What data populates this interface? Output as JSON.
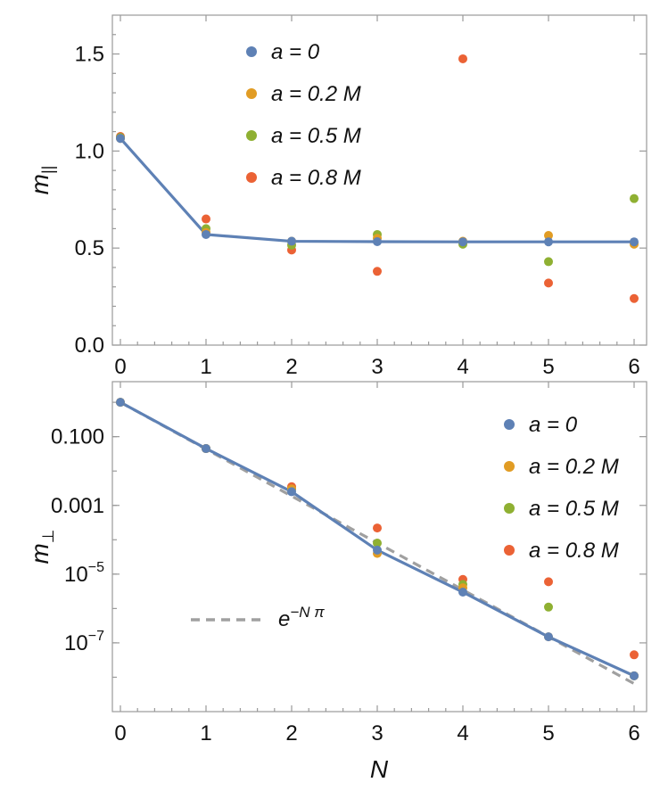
{
  "chart_data": [
    {
      "id": "top",
      "type": "scatter",
      "ylabel": "m",
      "ylabel_sub": "||",
      "xlim": [
        0,
        6
      ],
      "ylim": [
        0,
        1.7
      ],
      "yscale": "linear",
      "xticks": [
        "0",
        "1",
        "2",
        "3",
        "4",
        "5",
        "6"
      ],
      "yticks": [
        {
          "value": 0.0,
          "label": "0.0"
        },
        {
          "value": 0.5,
          "label": "0.5"
        },
        {
          "value": 1.0,
          "label": "1.0"
        },
        {
          "value": 1.5,
          "label": "1.5"
        }
      ],
      "legend_placement": "top-center",
      "series": [
        {
          "name": "a = 0",
          "color": "#5e81b5",
          "x": [
            0,
            1,
            2,
            3,
            4,
            5,
            6
          ],
          "y": [
            1.065,
            0.57,
            0.535,
            0.533,
            0.532,
            0.532,
            0.532
          ]
        },
        {
          "name": "a = 0.2 M",
          "color": "#e19c24",
          "x": [
            0,
            1,
            2,
            3,
            4,
            5,
            6
          ],
          "y": [
            1.065,
            0.58,
            0.535,
            0.55,
            0.535,
            0.565,
            0.52
          ]
        },
        {
          "name": "a = 0.5 M",
          "color": "#8fb032",
          "x": [
            0,
            1,
            2,
            3,
            4,
            5,
            6
          ],
          "y": [
            1.07,
            0.6,
            0.515,
            0.57,
            0.52,
            0.43,
            0.755
          ]
        },
        {
          "name": "a = 0.8 M",
          "color": "#eb6235",
          "x": [
            0,
            1,
            2,
            3,
            4,
            5,
            6
          ],
          "y": [
            1.075,
            0.65,
            0.49,
            0.38,
            1.475,
            0.32,
            0.24
          ]
        }
      ],
      "line": {
        "series": "a = 0",
        "color": "#5e81b5"
      }
    },
    {
      "id": "bottom",
      "type": "scatter",
      "xlabel": "N",
      "ylabel": "m",
      "ylabel_sub": "⊥",
      "xlim": [
        0,
        6
      ],
      "ylim_log10": [
        -9,
        0.6
      ],
      "yscale": "log",
      "xticks": [
        "0",
        "1",
        "2",
        "3",
        "4",
        "5",
        "6"
      ],
      "yticks": [
        {
          "value": 0.1,
          "label": "0.100"
        },
        {
          "value": 0.001,
          "label": "0.001"
        },
        {
          "value": 1e-05,
          "label": "10",
          "exp": "−5"
        },
        {
          "value": 1e-07,
          "label": "10",
          "exp": "−7"
        }
      ],
      "legend_placement": "top-right",
      "series": [
        {
          "name": "a = 0",
          "color": "#5e81b5",
          "x": [
            0,
            1,
            2,
            3,
            4,
            5,
            6
          ],
          "y": [
            1.0,
            0.045,
            0.0025,
            5e-05,
            3e-06,
            1.5e-07,
            1.1e-08
          ]
        },
        {
          "name": "a = 0.2 M",
          "color": "#e19c24",
          "x": [
            0,
            1,
            2,
            3,
            4,
            5,
            6
          ],
          "y": [
            1.0,
            0.045,
            0.003,
            4e-05,
            4e-06,
            1.5e-07,
            1.1e-08
          ]
        },
        {
          "name": "a = 0.5 M",
          "color": "#8fb032",
          "x": [
            0,
            1,
            2,
            3,
            4,
            5,
            6
          ],
          "y": [
            1.0,
            0.045,
            0.003,
            8e-05,
            5e-06,
            1.1e-06,
            1.1e-08
          ]
        },
        {
          "name": "a = 0.8 M",
          "color": "#eb6235",
          "x": [
            0,
            1,
            2,
            3,
            4,
            5,
            6
          ],
          "y": [
            1.0,
            0.045,
            0.0035,
            0.00022,
            7e-06,
            6e-06,
            4.5e-08
          ]
        }
      ],
      "line": {
        "series": "a = 0",
        "color": "#5e81b5"
      },
      "reference": {
        "label_base": "e",
        "label_exp": "−N π",
        "color": "#a0a0a0",
        "dashed": true,
        "formula": "exp(-N*pi)"
      }
    }
  ]
}
